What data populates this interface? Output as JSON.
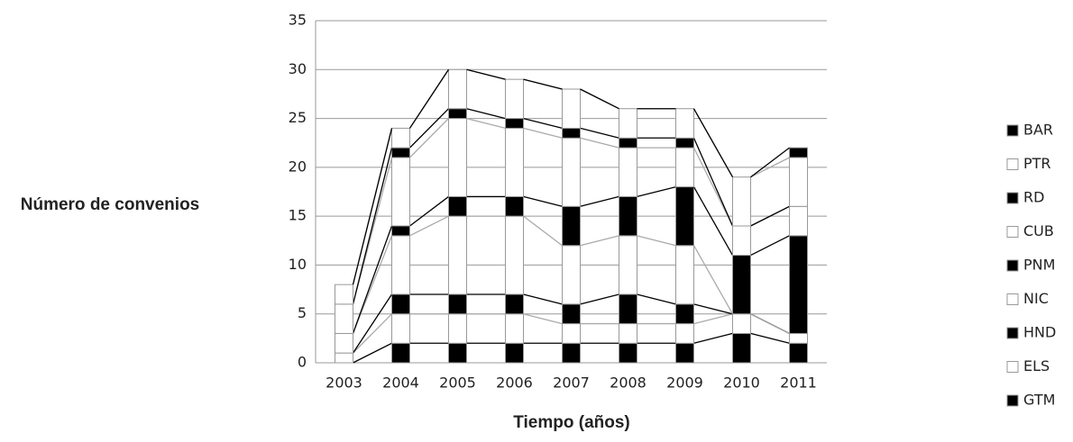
{
  "chart_data": {
    "type": "stacked_bar",
    "y_label": "Número de convenios",
    "x_label": "Tiempo (años)",
    "categories": [
      "2003",
      "2004",
      "2005",
      "2006",
      "2007",
      "2008",
      "2009",
      "2010",
      "2011"
    ],
    "series": [
      {
        "name": "GTM",
        "color": "#000000",
        "values": [
          0,
          2,
          2,
          2,
          2,
          2,
          2,
          3,
          2
        ]
      },
      {
        "name": "ELS",
        "color": "#ffffff",
        "values": [
          1,
          3,
          3,
          3,
          2,
          2,
          2,
          2,
          1
        ]
      },
      {
        "name": "HND",
        "color": "#000000",
        "values": [
          0,
          2,
          2,
          2,
          2,
          3,
          2,
          0,
          0
        ]
      },
      {
        "name": "NIC",
        "color": "#ffffff",
        "values": [
          2,
          6,
          8,
          8,
          6,
          6,
          6,
          0,
          0
        ]
      },
      {
        "name": "PNM",
        "color": "#000000",
        "values": [
          0,
          1,
          2,
          2,
          4,
          4,
          6,
          6,
          10
        ]
      },
      {
        "name": "CUB",
        "color": "#ffffff",
        "values": [
          3,
          7,
          8,
          7,
          7,
          5,
          4,
          3,
          3
        ]
      },
      {
        "name": "RD",
        "color": "#000000",
        "values": [
          0,
          1,
          1,
          1,
          1,
          1,
          1,
          0,
          0
        ]
      },
      {
        "name": "PTR",
        "color": "#ffffff",
        "values": [
          2,
          2,
          4,
          4,
          4,
          3,
          3,
          5,
          5
        ]
      },
      {
        "name": "BAR",
        "color": "#000000",
        "values": [
          0,
          0,
          0,
          0,
          0,
          0,
          0,
          0,
          1
        ]
      }
    ],
    "ylim": [
      0,
      35
    ],
    "yticks": [
      0,
      5,
      10,
      15,
      20,
      25,
      30,
      35
    ],
    "grid": true,
    "legend": "right"
  }
}
